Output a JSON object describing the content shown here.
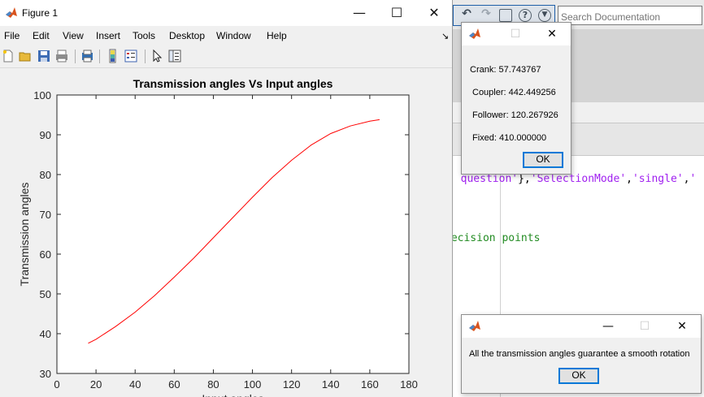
{
  "figure": {
    "title": "Figure 1",
    "controls": {
      "minimize": "—",
      "maximize": "☐",
      "close": "✕"
    },
    "menu": [
      "File",
      "Edit",
      "View",
      "Insert",
      "Tools",
      "Desktop",
      "Window",
      "Help"
    ],
    "toolbar_icons": [
      "new-figure-icon",
      "open-file-icon",
      "save-icon",
      "print-icon",
      "print-preview-icon",
      "colorbar-icon",
      "legend-icon",
      "pointer-icon",
      "property-editor-icon"
    ]
  },
  "desktop": {
    "search_placeholder": "Search Documentation",
    "code_line1_prefix": "",
    "code_line1_parts": [
      ": question'",
      "},",
      "'SelectionMode'",
      ",",
      "'single'",
      ",",
      "'"
    ],
    "code_line2": "recision points"
  },
  "dialog_values": {
    "lines": [
      "Crank: 57.743767",
      "Coupler: 442.449256",
      "Follower: 120.267926",
      "Fixed: 410.000000"
    ],
    "ok": "OK"
  },
  "dialog_message": {
    "text": "All the transmission angles guarantee a smooth rotation",
    "ok": "OK"
  },
  "chart_data": {
    "type": "line",
    "title": "Transmission angles Vs Input  angles",
    "xlabel": "Input angles",
    "ylabel": "Transmission angles",
    "xlim": [
      0,
      180
    ],
    "ylim": [
      30,
      100
    ],
    "xticks": [
      0,
      20,
      40,
      60,
      80,
      100,
      120,
      140,
      160,
      180
    ],
    "yticks": [
      30,
      40,
      50,
      60,
      70,
      80,
      90,
      100
    ],
    "grid": false,
    "series": [
      {
        "color": "#ff0000",
        "x": [
          16,
          20,
          30,
          40,
          50,
          60,
          70,
          80,
          90,
          100,
          110,
          120,
          130,
          140,
          150,
          160,
          165
        ],
        "y": [
          37.6,
          38.6,
          41.8,
          45.4,
          49.6,
          54.2,
          59.0,
          64.1,
          69.2,
          74.3,
          79.2,
          83.6,
          87.4,
          90.3,
          92.2,
          93.4,
          93.8
        ]
      }
    ]
  }
}
